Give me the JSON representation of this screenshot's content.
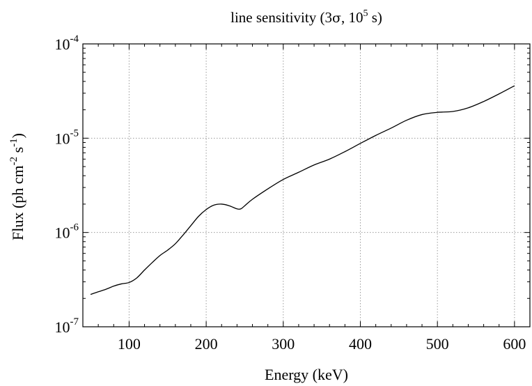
{
  "chart_data": {
    "type": "line",
    "title": {
      "prefix": "line sensitivity (3",
      "sigma": "σ",
      "mid": ", 10",
      "sup": "5",
      "suffix": " s)"
    },
    "xlabel": "Energy (keV)",
    "ylabel": {
      "p1": "Flux  (ph cm",
      "s1": "-2",
      "p2": " s",
      "s2": "-1",
      "p3": ")"
    },
    "x_scale": "linear",
    "y_scale": "log",
    "xlim": [
      40,
      620
    ],
    "ylim": [
      1e-07,
      0.0001
    ],
    "x_ticks": [
      {
        "value": 100,
        "label": "100"
      },
      {
        "value": 200,
        "label": "200"
      },
      {
        "value": 300,
        "label": "300"
      },
      {
        "value": 400,
        "label": "400"
      },
      {
        "value": 500,
        "label": "500"
      },
      {
        "value": 600,
        "label": "600"
      }
    ],
    "y_ticks": [
      {
        "value": 1e-07,
        "base": "10",
        "exp": "-7"
      },
      {
        "value": 1e-06,
        "base": "10",
        "exp": "-6"
      },
      {
        "value": 1e-05,
        "base": "10",
        "exp": "-5"
      },
      {
        "value": 0.0001,
        "base": "10",
        "exp": "-4"
      }
    ],
    "grid": true,
    "series": [
      {
        "color": "#000000",
        "points": [
          [
            50,
            2.2e-07
          ],
          [
            60,
            2.35e-07
          ],
          [
            70,
            2.5e-07
          ],
          [
            80,
            2.7e-07
          ],
          [
            90,
            2.85e-07
          ],
          [
            100,
            2.95e-07
          ],
          [
            110,
            3.3e-07
          ],
          [
            120,
            4e-07
          ],
          [
            130,
            4.8e-07
          ],
          [
            140,
            5.7e-07
          ],
          [
            150,
            6.5e-07
          ],
          [
            160,
            7.6e-07
          ],
          [
            170,
            9.4e-07
          ],
          [
            180,
            1.18e-06
          ],
          [
            190,
            1.48e-06
          ],
          [
            200,
            1.75e-06
          ],
          [
            210,
            1.95e-06
          ],
          [
            220,
            2e-06
          ],
          [
            230,
            1.92e-06
          ],
          [
            240,
            1.78e-06
          ],
          [
            245,
            1.78e-06
          ],
          [
            250,
            1.92e-06
          ],
          [
            260,
            2.25e-06
          ],
          [
            280,
            2.9e-06
          ],
          [
            300,
            3.65e-06
          ],
          [
            320,
            4.35e-06
          ],
          [
            340,
            5.2e-06
          ],
          [
            360,
            6e-06
          ],
          [
            380,
            7.2e-06
          ],
          [
            400,
            8.8e-06
          ],
          [
            420,
            1.07e-05
          ],
          [
            440,
            1.28e-05
          ],
          [
            460,
            1.55e-05
          ],
          [
            480,
            1.78e-05
          ],
          [
            500,
            1.88e-05
          ],
          [
            520,
            1.92e-05
          ],
          [
            540,
            2.1e-05
          ],
          [
            560,
            2.45e-05
          ],
          [
            580,
            2.95e-05
          ],
          [
            600,
            3.6e-05
          ]
        ]
      }
    ]
  }
}
